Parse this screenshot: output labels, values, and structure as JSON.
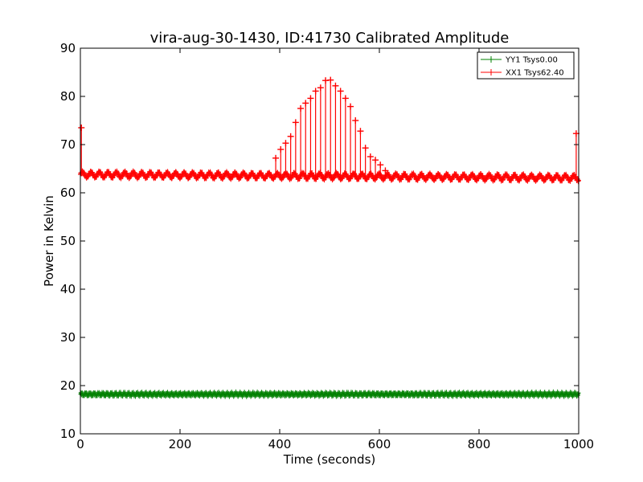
{
  "chart_data": {
    "type": "line",
    "title": "vira-aug-30-1430, ID:41730 Calibrated Amplitude",
    "xlabel": "Time (seconds)",
    "ylabel": "Power in Kelvin",
    "xlim": [
      0,
      1000
    ],
    "ylim": [
      10,
      90
    ],
    "xticks": [
      "0",
      "200",
      "400",
      "600",
      "800",
      "1000"
    ],
    "yticks": [
      "10",
      "20",
      "30",
      "40",
      "50",
      "60",
      "70",
      "80",
      "90"
    ],
    "grid": false,
    "legend_position": "top-right",
    "series": [
      {
        "name": "YY1 Tsys0.00",
        "color": "#008000",
        "marker": "plus",
        "pattern": {
          "x_start": 0,
          "x_end": 1000,
          "x_step": 0.5,
          "baseline": 18.2,
          "ripple": 0.25
        }
      },
      {
        "name": "XX1 Tsys62.40",
        "color": "#ff0000",
        "marker": "plus",
        "pattern": {
          "x_start": 0,
          "x_end": 1000,
          "x_step": 0.5,
          "baseline_start": 63.8,
          "baseline_end": 63.1,
          "ripple": 0.5,
          "ripple_period_seconds": 17
        },
        "spikes": [
          {
            "x": 2,
            "y": 73.5
          },
          {
            "x": 392,
            "y": 67.2
          },
          {
            "x": 402,
            "y": 69.0
          },
          {
            "x": 412,
            "y": 70.3
          },
          {
            "x": 422,
            "y": 71.7
          },
          {
            "x": 432,
            "y": 74.6
          },
          {
            "x": 442,
            "y": 77.5
          },
          {
            "x": 452,
            "y": 78.6
          },
          {
            "x": 462,
            "y": 79.6
          },
          {
            "x": 472,
            "y": 81.1
          },
          {
            "x": 482,
            "y": 81.8
          },
          {
            "x": 492,
            "y": 83.3
          },
          {
            "x": 502,
            "y": 83.4
          },
          {
            "x": 512,
            "y": 82.2
          },
          {
            "x": 522,
            "y": 81.1
          },
          {
            "x": 532,
            "y": 79.6
          },
          {
            "x": 542,
            "y": 77.9
          },
          {
            "x": 552,
            "y": 75.0
          },
          {
            "x": 562,
            "y": 72.8
          },
          {
            "x": 572,
            "y": 69.3
          },
          {
            "x": 582,
            "y": 67.5
          },
          {
            "x": 592,
            "y": 66.8
          },
          {
            "x": 602,
            "y": 65.8
          },
          {
            "x": 612,
            "y": 64.6
          },
          {
            "x": 995,
            "y": 72.3
          }
        ]
      }
    ]
  }
}
